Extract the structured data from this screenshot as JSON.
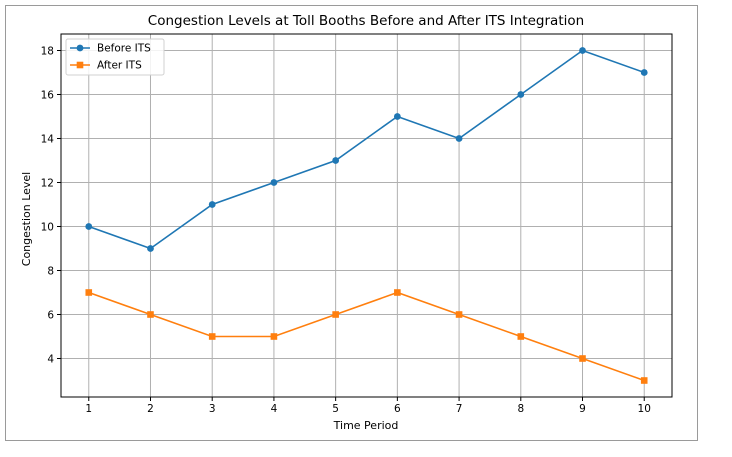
{
  "chart_data": {
    "type": "line",
    "title": "Congestion Levels at Toll Booths Before and After ITS Integration",
    "xlabel": "Time Period",
    "ylabel": "Congestion Level",
    "x": [
      1,
      2,
      3,
      4,
      5,
      6,
      7,
      8,
      9,
      10
    ],
    "xticks": [
      "1",
      "2",
      "3",
      "4",
      "5",
      "6",
      "7",
      "8",
      "9",
      "10"
    ],
    "yticks": [
      "4",
      "6",
      "8",
      "10",
      "12",
      "14",
      "16",
      "18"
    ],
    "xlim": [
      0.55,
      10.45
    ],
    "ylim": [
      2.25,
      18.75
    ],
    "grid": true,
    "legend_position": "upper-left",
    "series": [
      {
        "name": "Before ITS",
        "color": "#1f77b4",
        "marker": "circle",
        "values": [
          10,
          9,
          11,
          12,
          13,
          15,
          14,
          16,
          18,
          17
        ]
      },
      {
        "name": "After ITS",
        "color": "#ff7f0e",
        "marker": "square",
        "values": [
          7,
          6,
          5,
          5,
          6,
          7,
          6,
          5,
          4,
          3
        ]
      }
    ]
  }
}
